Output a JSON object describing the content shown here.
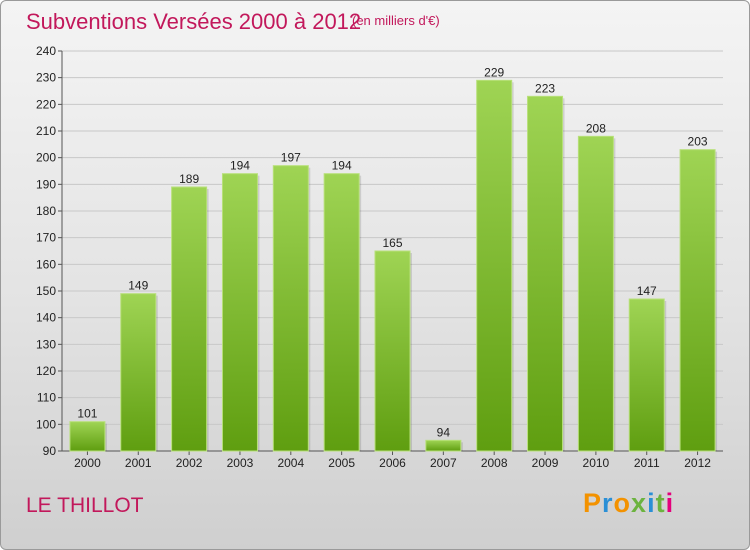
{
  "header": {
    "title": "Subventions Versées 2000 à 2012",
    "unit": "(en milliers d'€)"
  },
  "footer": {
    "commune": "LE THILLOT",
    "brand": "Proxiti"
  },
  "colors": {
    "title": "#c2185b",
    "bar_top": "#9fd454",
    "bar_bottom": "#5f9e10",
    "brand_letters": [
      "#f39200",
      "#2a8fd6",
      "#f39200",
      "#6cb33f",
      "#2a8fd6",
      "#6cb33f",
      "#e4007c"
    ]
  },
  "chart_data": {
    "type": "bar",
    "categories": [
      "2000",
      "2001",
      "2002",
      "2003",
      "2004",
      "2005",
      "2006",
      "2007",
      "2008",
      "2009",
      "2010",
      "2011",
      "2012"
    ],
    "values": [
      101,
      149,
      189,
      194,
      197,
      194,
      165,
      94,
      229,
      223,
      208,
      147,
      203
    ],
    "title": "Subventions Versées 2000 à 2012",
    "xlabel": "",
    "ylabel": "",
    "ylim": [
      90,
      240
    ],
    "yticks": [
      90,
      100,
      110,
      120,
      130,
      140,
      150,
      160,
      170,
      180,
      190,
      200,
      210,
      220,
      230,
      240
    ],
    "grid": true,
    "legend": "none"
  }
}
